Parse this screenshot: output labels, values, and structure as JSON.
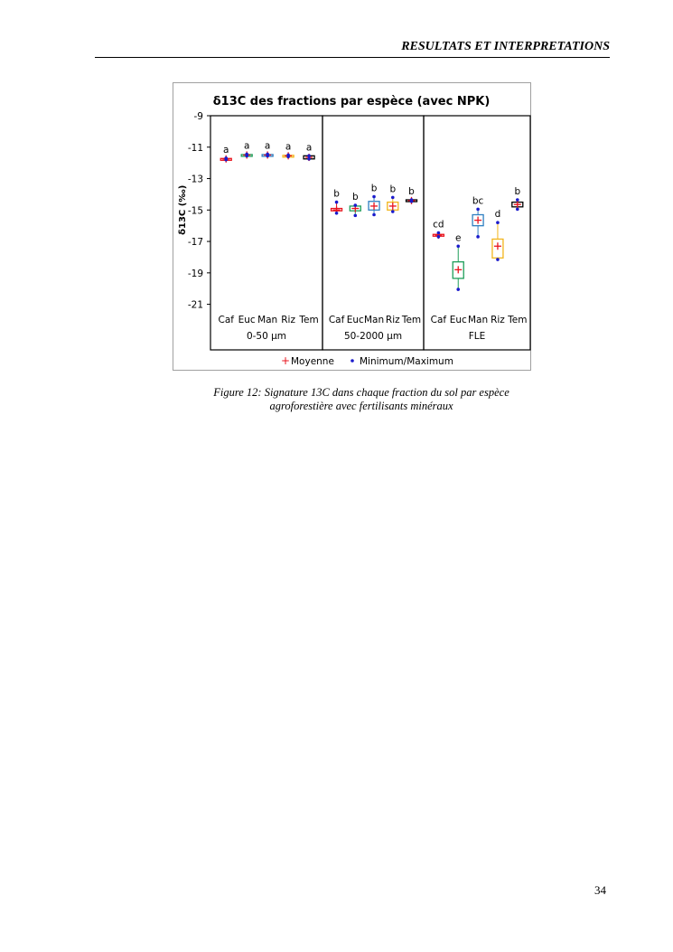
{
  "header": {
    "title": "RESULTATS ET INTERPRETATIONS"
  },
  "caption": {
    "line1": "Figure 12: Signature 13C dans chaque fraction du sol par espèce",
    "line2": "agroforestière avec fertilisants minéraux"
  },
  "page_number": "34",
  "chart_data": {
    "type": "box",
    "title": "δ13C des fractions par espèce (avec NPK)",
    "ylabel": "δ13C (‰)",
    "xlabel": "",
    "ylim": [
      -23.9,
      -9
    ],
    "yticks": [
      -9,
      -11,
      -13,
      -15,
      -17,
      -19,
      -21
    ],
    "grid": false,
    "legend": {
      "placement": "bottom",
      "entries": [
        "Moyenne",
        "Minimum/Maximum"
      ]
    },
    "colors": {
      "Caf": "#e8141e",
      "Euc": "#1f9e5a",
      "Man": "#2f7fc1",
      "Riz": "#f2b51c",
      "Tem": "#000000",
      "mean": "#e8141e",
      "minmax": "#1a1acc"
    },
    "groups": [
      {
        "name": "0-50 µm",
        "items": [
          {
            "cat": "Caf",
            "letter": "a",
            "mean": -11.75,
            "min": -11.8,
            "max": -11.7,
            "q1": -11.78,
            "q3": -11.72
          },
          {
            "cat": "Euc",
            "letter": "a",
            "mean": -11.5,
            "min": -11.55,
            "max": -11.45,
            "q1": -11.53,
            "q3": -11.47
          },
          {
            "cat": "Man",
            "letter": "a",
            "mean": -11.5,
            "min": -11.55,
            "max": -11.45,
            "q1": -11.53,
            "q3": -11.47
          },
          {
            "cat": "Riz",
            "letter": "a",
            "mean": -11.55,
            "min": -11.6,
            "max": -11.5,
            "q1": -11.58,
            "q3": -11.52
          },
          {
            "cat": "Tem",
            "letter": "a",
            "mean": -11.65,
            "min": -11.75,
            "max": -11.55,
            "q1": -11.75,
            "q3": -11.55
          }
        ]
      },
      {
        "name": "50-2000 µm",
        "items": [
          {
            "cat": "Caf",
            "letter": "b",
            "mean": -15.0,
            "min": -15.2,
            "max": -14.5,
            "q1": -15.05,
            "q3": -14.9
          },
          {
            "cat": "Euc",
            "letter": "b",
            "mean": -14.9,
            "min": -15.35,
            "max": -14.7,
            "q1": -15.05,
            "q3": -14.75
          },
          {
            "cat": "Man",
            "letter": "b",
            "mean": -14.75,
            "min": -15.3,
            "max": -14.15,
            "q1": -15.0,
            "q3": -14.45
          },
          {
            "cat": "Riz",
            "letter": "b",
            "mean": -14.75,
            "min": -15.1,
            "max": -14.2,
            "q1": -15.0,
            "q3": -14.5
          },
          {
            "cat": "Tem",
            "letter": "b",
            "mean": -14.4,
            "min": -14.45,
            "max": -14.35,
            "q1": -14.45,
            "q3": -14.35
          }
        ]
      },
      {
        "name": "FLE",
        "items": [
          {
            "cat": "Caf",
            "letter": "cd",
            "mean": -16.6,
            "min": -16.7,
            "max": -16.45,
            "q1": -16.65,
            "q3": -16.55
          },
          {
            "cat": "Euc",
            "letter": "e",
            "mean": -18.8,
            "min": -20.05,
            "max": -17.3,
            "q1": -19.35,
            "q3": -18.3
          },
          {
            "cat": "Man",
            "letter": "bc",
            "mean": -15.65,
            "min": -16.7,
            "max": -14.95,
            "q1": -16.0,
            "q3": -15.3
          },
          {
            "cat": "Riz",
            "letter": "d",
            "mean": -17.3,
            "min": -18.15,
            "max": -15.8,
            "q1": -18.05,
            "q3": -16.85
          },
          {
            "cat": "Tem",
            "letter": "b",
            "mean": -14.65,
            "min": -14.95,
            "max": -14.35,
            "q1": -14.8,
            "q3": -14.5
          }
        ]
      }
    ]
  }
}
